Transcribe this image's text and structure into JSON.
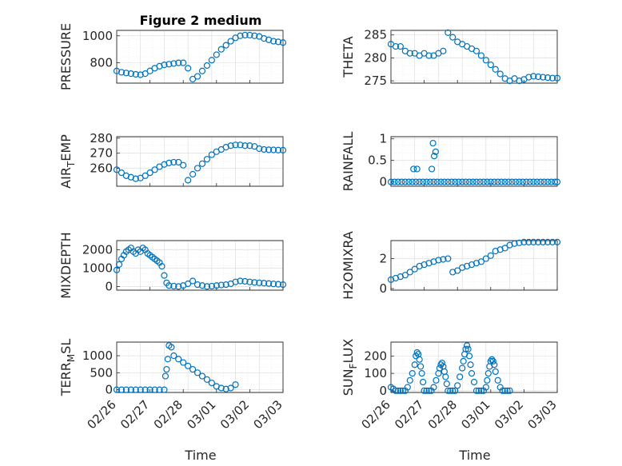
{
  "figure": {
    "title": "Figure 2 medium",
    "marker_color": "#0072BD",
    "x_ticks": [
      "02/26",
      "02/27",
      "02/28",
      "03/01",
      "03/02",
      "03/03"
    ],
    "xlabel": "Time"
  },
  "chart_data": [
    {
      "type": "scatter",
      "ylabel": "PRESSURE",
      "ylim": [
        650,
        1040
      ],
      "yticks": [
        800,
        1000
      ],
      "xlim_days": [
        0,
        7
      ],
      "x": [
        0.0,
        0.2,
        0.4,
        0.6,
        0.8,
        1.0,
        1.2,
        1.4,
        1.6,
        1.8,
        2.0,
        2.2,
        2.4,
        2.6,
        2.8,
        3.0,
        3.2,
        3.4,
        3.6,
        3.8,
        4.0,
        4.2,
        4.4,
        4.6,
        4.8,
        5.0,
        5.2,
        5.4,
        5.6,
        5.8,
        6.0,
        6.2,
        6.4,
        6.6,
        6.8,
        7.0
      ],
      "y": [
        740,
        730,
        725,
        720,
        715,
        712,
        720,
        740,
        760,
        775,
        785,
        790,
        795,
        800,
        800,
        760,
        680,
        700,
        740,
        780,
        820,
        860,
        900,
        930,
        960,
        985,
        1000,
        1005,
        1005,
        1000,
        995,
        980,
        970,
        960,
        955,
        950
      ]
    },
    {
      "type": "scatter",
      "ylabel": "THETA",
      "ylim": [
        274.5,
        286
      ],
      "yticks": [
        275,
        280,
        285
      ],
      "x": [
        0.0,
        0.2,
        0.4,
        0.6,
        0.8,
        1.0,
        1.2,
        1.4,
        1.6,
        1.8,
        2.0,
        2.2,
        2.4,
        2.6,
        2.8,
        3.0,
        3.2,
        3.4,
        3.6,
        3.8,
        4.0,
        4.2,
        4.4,
        4.6,
        4.8,
        5.0,
        5.2,
        5.4,
        5.6,
        5.8,
        6.0,
        6.2,
        6.4,
        6.6,
        6.8,
        7.0
      ],
      "y": [
        283,
        282.5,
        282.5,
        281.5,
        281,
        281,
        280.5,
        281,
        280.5,
        280.5,
        281,
        281.5,
        285.5,
        284.5,
        283.5,
        283,
        282.5,
        282,
        281.5,
        280.5,
        279.5,
        278.5,
        277.5,
        276.5,
        275.5,
        275,
        275.5,
        275,
        275.3,
        275.8,
        276,
        275.9,
        275.8,
        275.7,
        275.6,
        275.6
      ]
    },
    {
      "type": "scatter",
      "ylabel": "AIR_T EMP",
      "ylim": [
        248,
        281
      ],
      "yticks": [
        260,
        270,
        280
      ],
      "x": [
        0.0,
        0.2,
        0.4,
        0.6,
        0.8,
        1.0,
        1.2,
        1.4,
        1.6,
        1.8,
        2.0,
        2.2,
        2.4,
        2.6,
        2.8,
        3.0,
        3.2,
        3.4,
        3.6,
        3.8,
        4.0,
        4.2,
        4.4,
        4.6,
        4.8,
        5.0,
        5.2,
        5.4,
        5.6,
        5.8,
        6.0,
        6.2,
        6.4,
        6.6,
        6.8,
        7.0
      ],
      "y": [
        259,
        257,
        255,
        254,
        253,
        253.5,
        255,
        257,
        259,
        261,
        262.5,
        263.5,
        264,
        264,
        262,
        252,
        256,
        260,
        263,
        266,
        269,
        271,
        272.5,
        274,
        275,
        275.5,
        275.5,
        275,
        275,
        274.5,
        273,
        272.5,
        272.3,
        272.2,
        272.1,
        272
      ]
    },
    {
      "type": "scatter",
      "ylabel": "RAINFALL",
      "ylim": [
        -0.1,
        1.05
      ],
      "yticks": [
        0,
        0.5,
        1
      ],
      "x": [
        0.0,
        0.15,
        0.3,
        0.45,
        0.6,
        0.75,
        0.9,
        1.05,
        1.2,
        1.35,
        1.5,
        1.65,
        1.8,
        1.95,
        2.1,
        2.25,
        2.4,
        2.55,
        2.7,
        2.85,
        3.0,
        3.15,
        3.3,
        3.45,
        3.6,
        3.75,
        3.9,
        4.05,
        4.2,
        4.35,
        4.5,
        4.65,
        4.8,
        4.95,
        5.1,
        5.25,
        5.4,
        5.55,
        5.7,
        5.85,
        6.0,
        6.15,
        6.3,
        6.45,
        6.6,
        6.75,
        6.9,
        7.0,
        0.95,
        1.1,
        1.72,
        1.77,
        1.82,
        1.88
      ],
      "y": [
        0,
        0,
        0,
        0,
        0,
        0,
        0,
        0,
        0,
        0,
        0,
        0,
        0,
        0,
        0,
        0,
        0,
        0,
        0,
        0,
        0,
        0,
        0,
        0,
        0,
        0,
        0,
        0,
        0,
        0,
        0,
        0,
        0,
        0,
        0,
        0,
        0,
        0,
        0,
        0,
        0,
        0,
        0,
        0,
        0,
        0,
        0,
        0,
        0.3,
        0.3,
        0.3,
        0.9,
        0.6,
        0.7
      ]
    },
    {
      "type": "scatter",
      "ylabel": "MIXDEPTH",
      "ylim": [
        -200,
        2500
      ],
      "yticks": [
        0,
        1000,
        2000
      ],
      "x": [
        0.0,
        0.1,
        0.2,
        0.3,
        0.4,
        0.5,
        0.6,
        0.7,
        0.8,
        0.9,
        1.0,
        1.1,
        1.2,
        1.3,
        1.4,
        1.5,
        1.6,
        1.7,
        1.8,
        1.9,
        2.0,
        2.1,
        2.2,
        2.4,
        2.6,
        2.8,
        3.0,
        3.2,
        3.4,
        3.6,
        3.8,
        4.0,
        4.2,
        4.4,
        4.6,
        4.8,
        5.0,
        5.2,
        5.4,
        5.6,
        5.8,
        6.0,
        6.2,
        6.4,
        6.6,
        6.8,
        7.0
      ],
      "y": [
        900,
        1200,
        1500,
        1700,
        1900,
        2000,
        2100,
        1900,
        1800,
        2000,
        1900,
        2100,
        2000,
        1800,
        1700,
        1600,
        1500,
        1400,
        1300,
        1100,
        600,
        200,
        50,
        20,
        0,
        50,
        150,
        300,
        100,
        50,
        0,
        20,
        50,
        80,
        100,
        150,
        250,
        300,
        280,
        250,
        220,
        200,
        180,
        160,
        140,
        120,
        100
      ]
    },
    {
      "type": "scatter",
      "ylabel": "H2OMIXRA",
      "ylim": [
        -0.1,
        3.2
      ],
      "yticks": [
        0,
        2
      ],
      "x": [
        0.0,
        0.2,
        0.4,
        0.6,
        0.8,
        1.0,
        1.2,
        1.4,
        1.6,
        1.8,
        2.0,
        2.2,
        2.4,
        2.6,
        2.8,
        3.0,
        3.2,
        3.4,
        3.6,
        3.8,
        4.0,
        4.2,
        4.4,
        4.6,
        4.8,
        5.0,
        5.2,
        5.4,
        5.6,
        5.8,
        6.0,
        6.2,
        6.4,
        6.6,
        6.8,
        7.0
      ],
      "y": [
        0.6,
        0.7,
        0.8,
        0.9,
        1.1,
        1.3,
        1.5,
        1.6,
        1.7,
        1.8,
        1.9,
        1.95,
        2.0,
        1.1,
        1.2,
        1.4,
        1.5,
        1.6,
        1.7,
        1.8,
        2.0,
        2.2,
        2.5,
        2.6,
        2.7,
        2.9,
        3.0,
        3.05,
        3.1,
        3.1,
        3.1,
        3.1,
        3.1,
        3.1,
        3.1,
        3.1
      ]
    },
    {
      "type": "scatter",
      "ylabel": "TERR_M SL",
      "ylim": [
        -80,
        1400
      ],
      "yticks": [
        0,
        500,
        1000
      ],
      "x": [
        0.0,
        0.2,
        0.4,
        0.6,
        0.8,
        1.0,
        1.2,
        1.4,
        1.6,
        1.8,
        2.0,
        2.05,
        2.1,
        2.15,
        2.2,
        2.3,
        2.4,
        2.6,
        2.8,
        3.0,
        3.2,
        3.4,
        3.6,
        3.8,
        4.0,
        4.2,
        4.4,
        4.6,
        4.8,
        5.0
      ],
      "y": [
        0,
        0,
        0,
        0,
        0,
        0,
        0,
        0,
        0,
        0,
        0,
        400,
        600,
        900,
        1300,
        1250,
        1000,
        900,
        800,
        700,
        600,
        500,
        400,
        300,
        200,
        100,
        50,
        20,
        50,
        150
      ]
    },
    {
      "type": "scatter",
      "ylabel": "SUN_F LUX",
      "ylim": [
        -10,
        280
      ],
      "yticks": [
        0,
        100,
        200
      ],
      "x": [
        0.0,
        0.1,
        0.2,
        0.3,
        0.4,
        0.5,
        0.6,
        0.7,
        0.8,
        0.9,
        1.0,
        1.05,
        1.1,
        1.15,
        1.2,
        1.25,
        1.3,
        1.35,
        1.4,
        1.5,
        1.6,
        1.7,
        1.8,
        1.9,
        2.0,
        2.05,
        2.1,
        2.15,
        2.2,
        2.25,
        2.3,
        2.35,
        2.4,
        2.5,
        2.6,
        2.7,
        2.8,
        2.9,
        3.0,
        3.05,
        3.1,
        3.15,
        3.2,
        3.25,
        3.3,
        3.35,
        3.4,
        3.5,
        3.6,
        3.7,
        3.8,
        3.9,
        4.0,
        4.05,
        4.1,
        4.15,
        4.2,
        4.25,
        4.3,
        4.35,
        4.4,
        4.5,
        4.6,
        4.7,
        4.8,
        4.9,
        5.0
      ],
      "y": [
        20,
        10,
        0,
        0,
        0,
        0,
        0,
        20,
        60,
        100,
        150,
        200,
        220,
        210,
        180,
        140,
        100,
        50,
        0,
        0,
        0,
        0,
        20,
        60,
        100,
        130,
        150,
        160,
        140,
        110,
        80,
        40,
        0,
        0,
        0,
        0,
        30,
        80,
        130,
        170,
        210,
        240,
        260,
        240,
        200,
        150,
        100,
        50,
        0,
        0,
        0,
        0,
        20,
        60,
        100,
        140,
        170,
        180,
        170,
        150,
        110,
        60,
        20,
        0,
        0,
        0,
        0
      ]
    }
  ]
}
